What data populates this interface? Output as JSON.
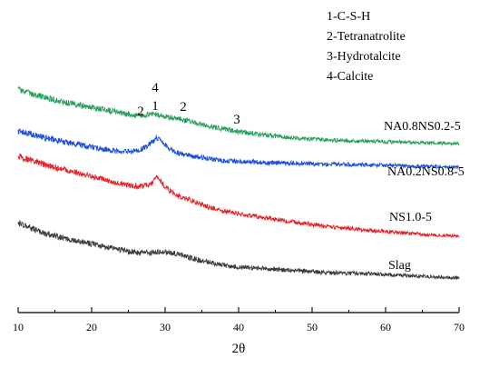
{
  "chart_data": {
    "type": "line",
    "xlabel": "2θ",
    "ylabel": "",
    "xlim": [
      10,
      70
    ],
    "x_ticks": [
      10,
      20,
      30,
      40,
      50,
      60,
      70
    ],
    "x_tick_labels": [
      "10",
      "20",
      "30",
      "40",
      "50",
      "60",
      "70"
    ],
    "grid": false,
    "legend": {
      "placement": "top-right",
      "entries": [
        "1-C-S-H",
        "2-Tetranatrolite",
        "3-Hydrotalcite",
        "4-Calcite"
      ]
    },
    "annotations": [
      {
        "text": "4",
        "x": 28.8
      },
      {
        "text": "1",
        "x": 28.8
      },
      {
        "text": "2",
        "x": 26.8
      },
      {
        "text": "2",
        "x": 32.2
      },
      {
        "text": "3",
        "x": 39.8
      }
    ],
    "series": [
      {
        "name": "NA0.8NS0.2-5",
        "color": "#2ca05a",
        "points": [
          [
            10,
            99
          ],
          [
            12,
            104
          ],
          [
            14,
            108
          ],
          [
            16,
            112
          ],
          [
            18,
            115
          ],
          [
            20,
            118
          ],
          [
            22,
            121
          ],
          [
            24,
            124
          ],
          [
            26,
            127
          ],
          [
            27,
            127
          ],
          [
            28,
            125
          ],
          [
            29,
            126
          ],
          [
            30,
            128
          ],
          [
            32,
            131
          ],
          [
            34,
            135
          ],
          [
            36,
            139
          ],
          [
            38,
            142
          ],
          [
            40,
            145
          ],
          [
            44,
            149
          ],
          [
            48,
            152
          ],
          [
            52,
            154
          ],
          [
            56,
            155
          ],
          [
            60,
            156
          ],
          [
            65,
            157
          ],
          [
            70,
            158
          ]
        ]
      },
      {
        "name": "NA0.2NS0.8-5",
        "color": "#1f4fd6",
        "points": [
          [
            10,
            144
          ],
          [
            12,
            148
          ],
          [
            14,
            152
          ],
          [
            16,
            156
          ],
          [
            18,
            159
          ],
          [
            20,
            162
          ],
          [
            22,
            165
          ],
          [
            24,
            167
          ],
          [
            26,
            166
          ],
          [
            27,
            163
          ],
          [
            28,
            158
          ],
          [
            28.8,
            151
          ],
          [
            29.5,
            155
          ],
          [
            30,
            160
          ],
          [
            31,
            166
          ],
          [
            32,
            169
          ],
          [
            34,
            172
          ],
          [
            36,
            175
          ],
          [
            38,
            177
          ],
          [
            40,
            178
          ],
          [
            44,
            179
          ],
          [
            48,
            180
          ],
          [
            52,
            181
          ],
          [
            56,
            181
          ],
          [
            60,
            182
          ],
          [
            65,
            183
          ],
          [
            70,
            184
          ]
        ]
      },
      {
        "name": "NS1.0-5",
        "color": "#e0262a",
        "points": [
          [
            10,
            172
          ],
          [
            12,
            177
          ],
          [
            14,
            182
          ],
          [
            16,
            186
          ],
          [
            18,
            190
          ],
          [
            20,
            194
          ],
          [
            22,
            198
          ],
          [
            24,
            202
          ],
          [
            26,
            205
          ],
          [
            27,
            205
          ],
          [
            28,
            203
          ],
          [
            28.8,
            195
          ],
          [
            29.5,
            200
          ],
          [
            30,
            206
          ],
          [
            31,
            212
          ],
          [
            32,
            216
          ],
          [
            34,
            222
          ],
          [
            36,
            228
          ],
          [
            38,
            232
          ],
          [
            40,
            235
          ],
          [
            44,
            240
          ],
          [
            48,
            245
          ],
          [
            52,
            249
          ],
          [
            56,
            252
          ],
          [
            60,
            255
          ],
          [
            65,
            258
          ],
          [
            70,
            260
          ]
        ]
      },
      {
        "name": "Slag",
        "color": "#3a3a3a",
        "points": [
          [
            10,
            245
          ],
          [
            12,
            252
          ],
          [
            14,
            258
          ],
          [
            16,
            262
          ],
          [
            18,
            265
          ],
          [
            20,
            268
          ],
          [
            22,
            272
          ],
          [
            24,
            275
          ],
          [
            26,
            278
          ],
          [
            28,
            278
          ],
          [
            30,
            277
          ],
          [
            32,
            280
          ],
          [
            34,
            285
          ],
          [
            36,
            289
          ],
          [
            38,
            292
          ],
          [
            40,
            294
          ],
          [
            44,
            296
          ],
          [
            48,
            298
          ],
          [
            52,
            300
          ],
          [
            56,
            301
          ],
          [
            60,
            302
          ],
          [
            65,
            304
          ],
          [
            70,
            306
          ]
        ]
      }
    ]
  }
}
